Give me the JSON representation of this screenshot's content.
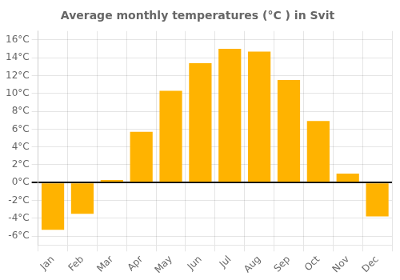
{
  "chart_data": {
    "type": "bar",
    "title": "Average monthly temperatures (°C ) in Svit",
    "categories": [
      "Jan",
      "Feb",
      "Mar",
      "Apr",
      "May",
      "Jun",
      "Jul",
      "Aug",
      "Sep",
      "Oct",
      "Nov",
      "Dec"
    ],
    "values": [
      -5.3,
      -3.5,
      0.3,
      5.7,
      10.3,
      13.4,
      15.0,
      14.7,
      11.5,
      6.9,
      1.0,
      -3.8
    ],
    "color": "#FFB300",
    "ylim": [
      -7,
      17
    ],
    "yticks": [
      {
        "value": -6,
        "label": "-6°C"
      },
      {
        "value": -4,
        "label": "-4°C"
      },
      {
        "value": -2,
        "label": "-2°C"
      },
      {
        "value": 0,
        "label": "0°C"
      },
      {
        "value": 2,
        "label": "2°C"
      },
      {
        "value": 4,
        "label": "4°C"
      },
      {
        "value": 6,
        "label": "6°C"
      },
      {
        "value": 8,
        "label": "8°C"
      },
      {
        "value": 10,
        "label": "10°C"
      },
      {
        "value": 12,
        "label": "12°C"
      },
      {
        "value": 14,
        "label": "14°C"
      },
      {
        "value": 16,
        "label": "16°C"
      }
    ],
    "grid": true
  }
}
